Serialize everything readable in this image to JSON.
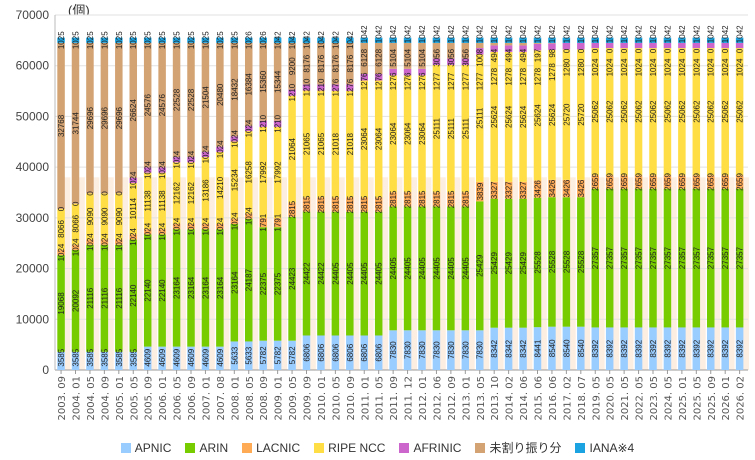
{
  "chart_data": {
    "type": "bar",
    "stacked": true,
    "unit_label": "(個)",
    "ylim": [
      0,
      70000
    ],
    "yticks": [
      0,
      10000,
      20000,
      30000,
      40000,
      50000,
      60000,
      70000
    ],
    "grid": true,
    "legend_position": "bottom",
    "categories": [
      "2003. 09",
      "2004. 01",
      "2004. 05",
      "2004. 09",
      "2005. 01",
      "2005. 05",
      "2005. 09",
      "2006. 01",
      "2006. 05",
      "2006. 09",
      "2007. 01",
      "2007. 08",
      "2008. 01",
      "2008. 05",
      "2008. 09",
      "2009. 01",
      "2009. 05",
      "2009. 09",
      "2010. 01",
      "2010. 05",
      "2010. 09",
      "2011. 01",
      "2011. 05",
      "2011. 09",
      "2011. 12",
      "2012. 01",
      "2012. 06",
      "2012. 09",
      "2013. 01",
      "2013. 05",
      "2013. 10",
      "2014. 02",
      "2014. 06",
      "2015. 06",
      "2016. 06",
      "2017. 02",
      "2018. 07",
      "2019. 05",
      "2020. 05",
      "2021. 05",
      "2022. 05",
      "2023. 05",
      "2024. 05",
      "2025. 01",
      "2025. 05",
      "2025. 09",
      "2026. 01",
      "2026. 02"
    ],
    "series": [
      {
        "name": "APNIC",
        "color": "#99ccff",
        "values": [
          3585,
          3585,
          3585,
          3585,
          3585,
          3585,
          4609,
          4609,
          4609,
          4609,
          4609,
          4609,
          5633,
          5633,
          5782,
          5782,
          5782,
          6806,
          6806,
          6806,
          6806,
          6806,
          6806,
          7830,
          7830,
          7830,
          7830,
          7830,
          7830,
          7830,
          8342,
          8342,
          8342,
          8441,
          8540,
          8540,
          8540,
          8392,
          8392,
          8392,
          8392,
          8392,
          8392,
          8392,
          8392,
          8392,
          8392,
          8392
        ]
      },
      {
        "name": "ARIN",
        "color": "#77cc00",
        "values": [
          19068,
          20092,
          21116,
          21116,
          21116,
          22140,
          22140,
          22140,
          23164,
          23164,
          23164,
          23164,
          23164,
          24187,
          22375,
          22375,
          24423,
          24422,
          24422,
          24405,
          24405,
          24405,
          24405,
          24405,
          24405,
          24405,
          24405,
          24405,
          24405,
          25429,
          25429,
          25429,
          25429,
          25528,
          25528,
          25528,
          25528,
          27357,
          27357,
          27357,
          27357,
          27357,
          27357,
          27357,
          27357,
          27357,
          27357,
          27357
        ]
      },
      {
        "name": "LACNIC",
        "color": "#ffaa55",
        "values": [
          1024,
          1024,
          1024,
          1024,
          1024,
          1024,
          1024,
          1024,
          1024,
          1024,
          1024,
          1024,
          1024,
          1024,
          1791,
          1791,
          2815,
          2815,
          2815,
          2815,
          2815,
          2815,
          2815,
          2815,
          2815,
          2815,
          2815,
          2815,
          2815,
          3839,
          3327,
          3327,
          3327,
          3426,
          3426,
          3426,
          3426,
          2659,
          2659,
          2659,
          2659,
          2659,
          2659,
          2659,
          2659,
          2659,
          2659,
          2659
        ]
      },
      {
        "name": "RIPE NCC",
        "color": "#ffdd44",
        "values": [
          8066,
          8066,
          9090,
          9090,
          9090,
          10114,
          11138,
          11138,
          12162,
          12162,
          13186,
          14210,
          15234,
          16258,
          17992,
          17992,
          21064,
          21065,
          21065,
          21018,
          21018,
          23064,
          23064,
          23064,
          23064,
          23064,
          25111,
          25111,
          25111,
          25111,
          25624,
          25624,
          25624,
          25624,
          25624,
          25720,
          25720,
          25062,
          25062,
          25062,
          25062,
          25062,
          25062,
          25062,
          25062,
          25062,
          25062,
          25062
        ]
      },
      {
        "name": "AFRINIC",
        "color": "#cc66cc",
        "values": [
          0,
          0,
          0,
          0,
          0,
          1024,
          1024,
          1024,
          1024,
          1024,
          1024,
          1024,
          1024,
          1024,
          1210,
          1210,
          1210,
          1210,
          1210,
          1276,
          1276,
          1276,
          1276,
          1276,
          1276,
          1276,
          1277,
          1277,
          1277,
          1277,
          1278,
          1278,
          1278,
          1278,
          1278,
          1280,
          1280,
          1024,
          1024,
          1024,
          1024,
          1024,
          1024,
          1024,
          1024,
          1024,
          1024,
          1024
        ]
      },
      {
        "name": "未割り振り分",
        "color": "#d4a373",
        "values": [
          32768,
          31744,
          29696,
          29696,
          29696,
          26624,
          24576,
          24576,
          22528,
          22528,
          21504,
          20480,
          18432,
          16384,
          15360,
          15344,
          9200,
          8176,
          8176,
          8176,
          8176,
          6128,
          6128,
          5104,
          5104,
          5104,
          3056,
          3056,
          3056,
          1008,
          494,
          494,
          494,
          197,
          98,
          0,
          0,
          0,
          0,
          0,
          0,
          0,
          0,
          0,
          0,
          0,
          0,
          0
        ]
      },
      {
        "name": "IANA※4",
        "color": "#1aa3e0",
        "values": [
          1025,
          1025,
          1025,
          1025,
          1025,
          1025,
          1025,
          1025,
          1025,
          1025,
          1025,
          1025,
          1025,
          1026,
          1026,
          1042,
          1042,
          1042,
          1042,
          1042,
          1042,
          1042,
          1042,
          1042,
          1042,
          1042,
          1042,
          1042,
          1042,
          1042,
          1042,
          1042,
          1042,
          1042,
          1042,
          1042,
          1042,
          1042,
          1042,
          1042,
          1042,
          1042,
          1042,
          1042,
          1042,
          1042,
          1042,
          1042
        ]
      }
    ]
  }
}
